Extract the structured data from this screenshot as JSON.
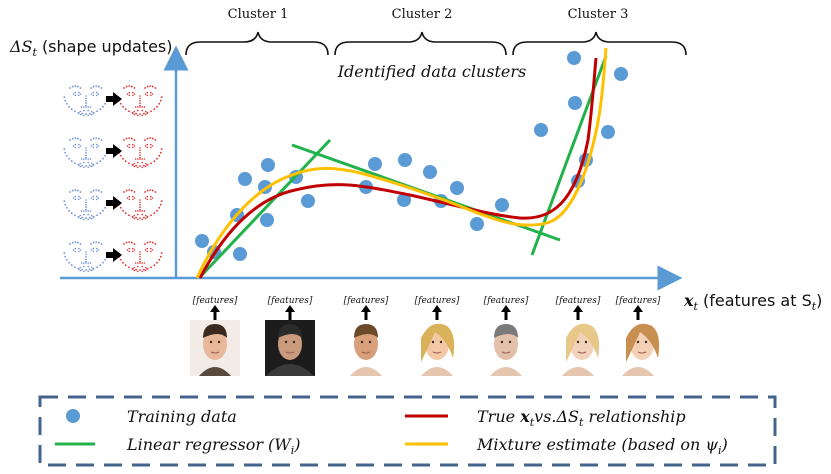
{
  "axes": {
    "y_label_math": "ΔS",
    "y_label_sub": "t",
    "y_label_rest": "(shape updates)",
    "x_label_math": "x",
    "x_label_sub": "t",
    "x_label_rest": "(features at S",
    "x_label_rest_sub": "t",
    "x_label_rest_close": ")"
  },
  "clusters": [
    "Cluster 1",
    "Cluster 2",
    "Cluster 3"
  ],
  "clusters_caption": "Identified data clusters",
  "features_label": "[features]",
  "face_count": 7,
  "shape_pairs": 4,
  "legend": {
    "training": "Training data",
    "linear": "Linear regressor (W",
    "linear_sub": "i",
    "linear_close": ")",
    "true_a": "True ",
    "true_x": "x",
    "true_x_sub": "t",
    "true_vs": "vs.ΔS",
    "true_s_sub": "t",
    "true_b": " relationship",
    "mixture": "Mixture estimate (based on ψ",
    "mixture_sub": "i",
    "mixture_close": ")"
  },
  "colors": {
    "axis": "#5b9bd5",
    "points": "#5b9bd5",
    "linear": "#21b24b",
    "true_curve": "#c00000",
    "mixture": "#ffc000",
    "legend_border": "#44648c",
    "shape_blue": "#6f8fd8",
    "shape_red": "#e03030"
  }
}
